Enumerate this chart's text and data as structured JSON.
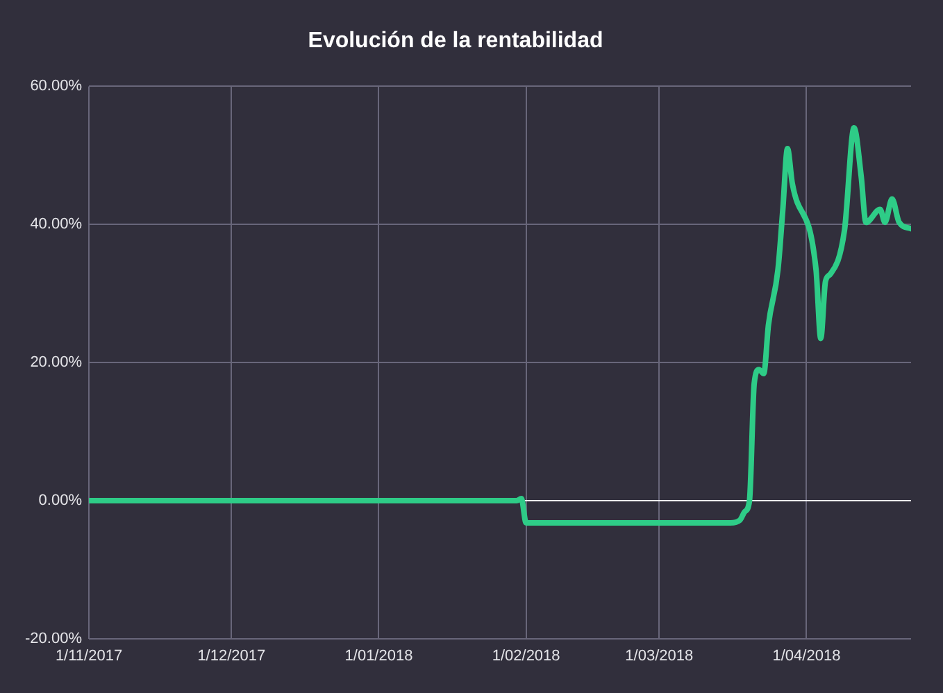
{
  "chart_data": {
    "type": "line",
    "title": "Evolución de la rentabilidad",
    "x": [
      "2017-11-01",
      "2018-01-30",
      "2018-01-31",
      "2018-02-01",
      "2018-03-16",
      "2018-03-18",
      "2018-03-19",
      "2018-03-20",
      "2018-03-21",
      "2018-03-22",
      "2018-03-23",
      "2018-03-24",
      "2018-03-26",
      "2018-03-27",
      "2018-03-28",
      "2018-03-29",
      "2018-04-03",
      "2018-04-04",
      "2018-04-05",
      "2018-04-06",
      "2018-04-09",
      "2018-04-11",
      "2018-04-12T12:00",
      "2018-04-13T12:00",
      "2018-04-16T12:00",
      "2018-04-17T12:00",
      "2018-04-19",
      "2018-04-20T12:00",
      "2018-04-23"
    ],
    "values": [
      0,
      0,
      0.3,
      -3.2,
      -3.2,
      -2.8,
      -1.6,
      0,
      17,
      19,
      18.4,
      25.5,
      33.5,
      42,
      51,
      46,
      33.5,
      23.5,
      31.8,
      32.8,
      39.2,
      54,
      47,
      40.3,
      42.2,
      40.3,
      43.7,
      40.3,
      39.4
    ],
    "color": "#2ecc87",
    "xlim": [
      "2017-11-01",
      "2018-04-23"
    ],
    "xticks": [
      {
        "value": "2017-11-01",
        "label": "1/11/2017"
      },
      {
        "value": "2017-12-01",
        "label": "1/12/2017"
      },
      {
        "value": "2018-01-01",
        "label": "1/01/2018"
      },
      {
        "value": "2018-02-01",
        "label": "1/02/2018"
      },
      {
        "value": "2018-03-01",
        "label": "1/03/2018"
      },
      {
        "value": "2018-04-01",
        "label": "1/04/2018"
      }
    ],
    "ylim": [
      -20,
      60
    ],
    "yticks": [
      {
        "value": -20,
        "label": "-20.00%"
      },
      {
        "value": 0,
        "label": "0.00%"
      },
      {
        "value": 20,
        "label": "20.00%"
      },
      {
        "value": 40,
        "label": "40.00%"
      },
      {
        "value": 60,
        "label": "60.00%"
      }
    ],
    "grid": true,
    "ref_lines": [
      {
        "axis": "y",
        "value": 0,
        "color": "#ffffff"
      }
    ]
  }
}
